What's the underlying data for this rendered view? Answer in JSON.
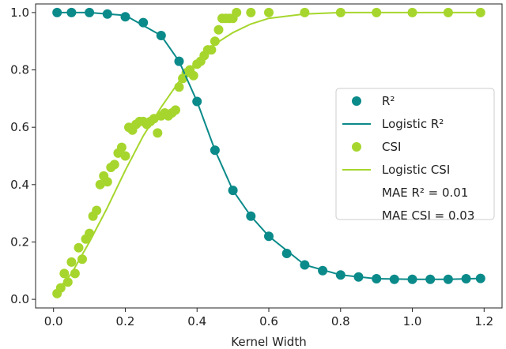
{
  "chart_data": {
    "type": "scatter",
    "xlabel": "Kernel Width",
    "ylabel": "",
    "xlim": [
      -0.05,
      1.25
    ],
    "ylim": [
      -0.03,
      1.03
    ],
    "x_ticks": [
      "0.0",
      "0.2",
      "0.4",
      "0.6",
      "0.8",
      "1.0",
      "1.2"
    ],
    "y_ticks": [
      "0.0",
      "0.2",
      "0.4",
      "0.6",
      "0.8",
      "1.0"
    ],
    "grid": false,
    "legend_position": "center-right",
    "colors": {
      "r2": "#0b8a8a",
      "csi": "#a6d62d"
    },
    "series": [
      {
        "name": "R²",
        "kind": "scatter",
        "color": "#0b8a8a",
        "points": [
          [
            0.01,
            1.0
          ],
          [
            0.05,
            1.0
          ],
          [
            0.1,
            1.0
          ],
          [
            0.15,
            0.995
          ],
          [
            0.2,
            0.985
          ],
          [
            0.25,
            0.965
          ],
          [
            0.3,
            0.92
          ],
          [
            0.35,
            0.83
          ],
          [
            0.4,
            0.69
          ],
          [
            0.45,
            0.52
          ],
          [
            0.5,
            0.38
          ],
          [
            0.55,
            0.29
          ],
          [
            0.6,
            0.22
          ],
          [
            0.65,
            0.16
          ],
          [
            0.7,
            0.12
          ],
          [
            0.75,
            0.1
          ],
          [
            0.8,
            0.085
          ],
          [
            0.85,
            0.078
          ],
          [
            0.9,
            0.072
          ],
          [
            0.95,
            0.07
          ],
          [
            1.0,
            0.07
          ],
          [
            1.05,
            0.07
          ],
          [
            1.1,
            0.07
          ],
          [
            1.15,
            0.072
          ],
          [
            1.19,
            0.073
          ]
        ]
      },
      {
        "name": "Logistic R²",
        "kind": "line",
        "color": "#0b8a8a",
        "points": [
          [
            0.01,
            1.0
          ],
          [
            0.1,
            1.0
          ],
          [
            0.2,
            0.99
          ],
          [
            0.3,
            0.92
          ],
          [
            0.35,
            0.83
          ],
          [
            0.4,
            0.69
          ],
          [
            0.45,
            0.52
          ],
          [
            0.5,
            0.38
          ],
          [
            0.55,
            0.29
          ],
          [
            0.6,
            0.22
          ],
          [
            0.7,
            0.12
          ],
          [
            0.8,
            0.085
          ],
          [
            0.9,
            0.072
          ],
          [
            1.0,
            0.07
          ],
          [
            1.1,
            0.07
          ],
          [
            1.19,
            0.073
          ]
        ]
      },
      {
        "name": "CSI",
        "kind": "scatter",
        "color": "#a6d62d",
        "points": [
          [
            0.01,
            0.02
          ],
          [
            0.02,
            0.04
          ],
          [
            0.03,
            0.09
          ],
          [
            0.04,
            0.06
          ],
          [
            0.05,
            0.13
          ],
          [
            0.06,
            0.09
          ],
          [
            0.07,
            0.18
          ],
          [
            0.08,
            0.14
          ],
          [
            0.09,
            0.21
          ],
          [
            0.1,
            0.23
          ],
          [
            0.11,
            0.29
          ],
          [
            0.12,
            0.31
          ],
          [
            0.13,
            0.4
          ],
          [
            0.14,
            0.43
          ],
          [
            0.15,
            0.41
          ],
          [
            0.16,
            0.46
          ],
          [
            0.17,
            0.47
          ],
          [
            0.18,
            0.51
          ],
          [
            0.19,
            0.53
          ],
          [
            0.2,
            0.5
          ],
          [
            0.21,
            0.6
          ],
          [
            0.22,
            0.59
          ],
          [
            0.23,
            0.61
          ],
          [
            0.24,
            0.62
          ],
          [
            0.25,
            0.62
          ],
          [
            0.26,
            0.61
          ],
          [
            0.27,
            0.62
          ],
          [
            0.28,
            0.63
          ],
          [
            0.29,
            0.58
          ],
          [
            0.3,
            0.64
          ],
          [
            0.31,
            0.65
          ],
          [
            0.32,
            0.64
          ],
          [
            0.33,
            0.65
          ],
          [
            0.34,
            0.66
          ],
          [
            0.35,
            0.74
          ],
          [
            0.36,
            0.77
          ],
          [
            0.37,
            0.79
          ],
          [
            0.38,
            0.8
          ],
          [
            0.39,
            0.78
          ],
          [
            0.4,
            0.82
          ],
          [
            0.41,
            0.83
          ],
          [
            0.42,
            0.85
          ],
          [
            0.43,
            0.87
          ],
          [
            0.44,
            0.87
          ],
          [
            0.45,
            0.9
          ],
          [
            0.46,
            0.94
          ],
          [
            0.47,
            0.98
          ],
          [
            0.48,
            0.98
          ],
          [
            0.49,
            0.98
          ],
          [
            0.5,
            0.98
          ],
          [
            0.51,
            1.0
          ],
          [
            0.55,
            1.0
          ],
          [
            0.6,
            1.0
          ],
          [
            0.7,
            1.0
          ],
          [
            0.8,
            1.0
          ],
          [
            0.9,
            1.0
          ],
          [
            1.0,
            1.0
          ],
          [
            1.1,
            1.0
          ],
          [
            1.19,
            1.0
          ]
        ]
      },
      {
        "name": "Logistic CSI",
        "kind": "line",
        "color": "#a6d62d",
        "points": [
          [
            0.01,
            0.03
          ],
          [
            0.05,
            0.09
          ],
          [
            0.1,
            0.2
          ],
          [
            0.15,
            0.32
          ],
          [
            0.2,
            0.45
          ],
          [
            0.25,
            0.57
          ],
          [
            0.3,
            0.67
          ],
          [
            0.35,
            0.76
          ],
          [
            0.4,
            0.83
          ],
          [
            0.45,
            0.89
          ],
          [
            0.5,
            0.93
          ],
          [
            0.55,
            0.96
          ],
          [
            0.6,
            0.98
          ],
          [
            0.7,
            0.995
          ],
          [
            0.8,
            1.0
          ],
          [
            1.0,
            1.0
          ],
          [
            1.19,
            1.0
          ]
        ]
      }
    ],
    "legend": {
      "entries": [
        {
          "label": "R²",
          "marker": "dot",
          "color": "#0b8a8a"
        },
        {
          "label": "Logistic R²",
          "marker": "line",
          "color": "#0b8a8a"
        },
        {
          "label": "CSI",
          "marker": "dot",
          "color": "#a6d62d"
        },
        {
          "label": "Logistic CSI",
          "marker": "line",
          "color": "#a6d62d"
        },
        {
          "label": "MAE R² = 0.01",
          "marker": "none",
          "color": ""
        },
        {
          "label": "MAE CSI = 0.03",
          "marker": "none",
          "color": ""
        }
      ]
    }
  }
}
